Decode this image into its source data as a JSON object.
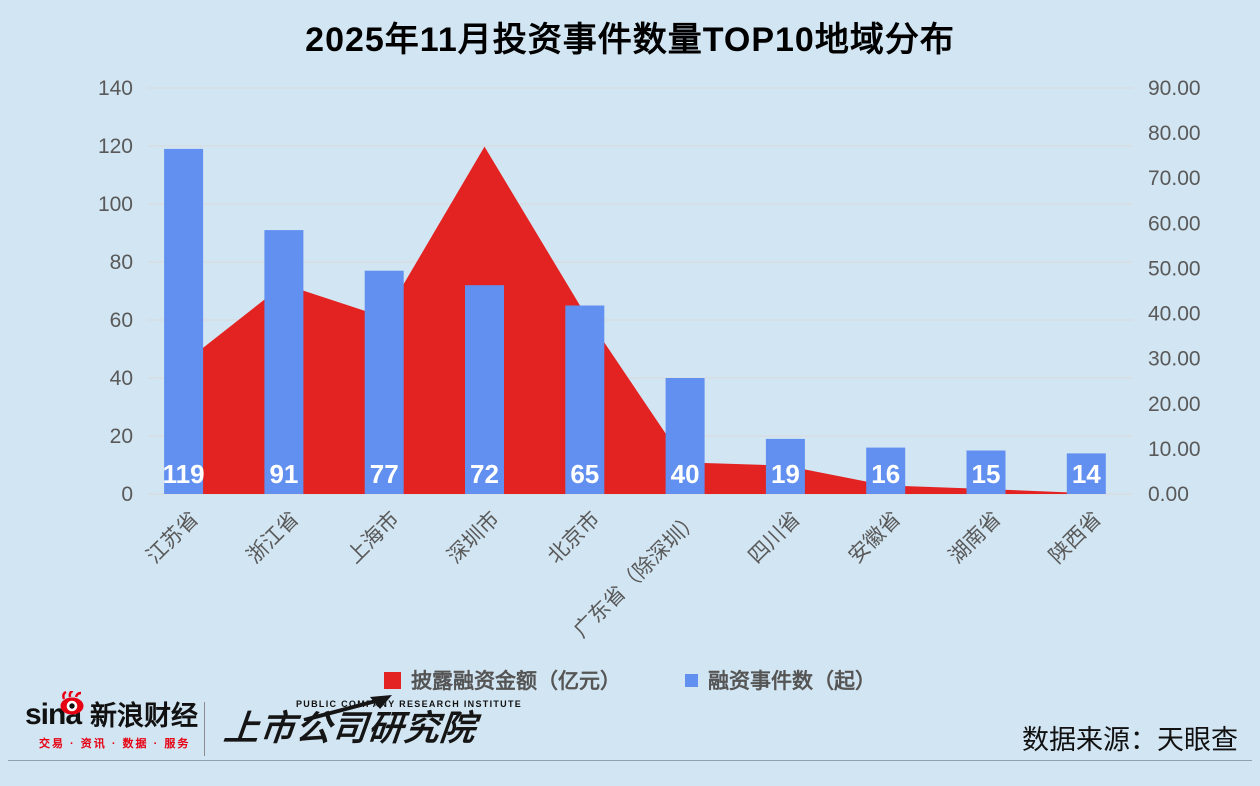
{
  "title": "2025年11月投资事件数量TOP10地域分布",
  "chart_data": {
    "type": "combo-bar-area",
    "categories": [
      "江苏省",
      "浙江省",
      "上海市",
      "深圳市",
      "北京市",
      "广东省（除深圳）",
      "四川省",
      "安徽省",
      "湖南省",
      "陕西省"
    ],
    "series": [
      {
        "name": "披露融资金额（亿元）",
        "chart_type": "area",
        "axis": "right",
        "color": "#e32322",
        "values": [
          29,
          46.5,
          39.2,
          77,
          40,
          7,
          6.3,
          1.9,
          1.1,
          0.2
        ]
      },
      {
        "name": "融资事件数（起）",
        "chart_type": "bar",
        "axis": "left",
        "color": "#6190f0",
        "data_labels": true,
        "values": [
          119,
          91,
          77,
          72,
          65,
          40,
          19,
          16,
          15,
          14
        ]
      }
    ],
    "left_axis": {
      "min": 0,
      "max": 140,
      "step": 20,
      "tick_labels": [
        "0",
        "20",
        "40",
        "60",
        "80",
        "100",
        "120",
        "140"
      ]
    },
    "right_axis": {
      "min": 0,
      "max": 90,
      "step": 10,
      "tick_labels": [
        "0.00",
        "10.00",
        "20.00",
        "30.00",
        "40.00",
        "50.00",
        "60.00",
        "70.00",
        "80.00",
        "90.00"
      ]
    },
    "grid": true,
    "legend_position": "bottom"
  },
  "footer": {
    "sina": {
      "wordmark": "sina",
      "name": "新浪财经",
      "tagline": "交易 · 资讯 · 数据 · 服务"
    },
    "institute": {
      "en": "PUBLIC COMPANY RESEARCH INSTITUTE",
      "cn": "上市公司研究院"
    },
    "source": "数据来源：天眼查"
  },
  "colors": {
    "background": "#d2e5f2",
    "grid": "#d9d9d9",
    "axis_text": "#595959",
    "bar_label": "#ffffff",
    "title": "#000000",
    "area": "#e32322",
    "bar": "#6190f0",
    "sina_red": "#e60012",
    "footer_text": "#111111"
  }
}
